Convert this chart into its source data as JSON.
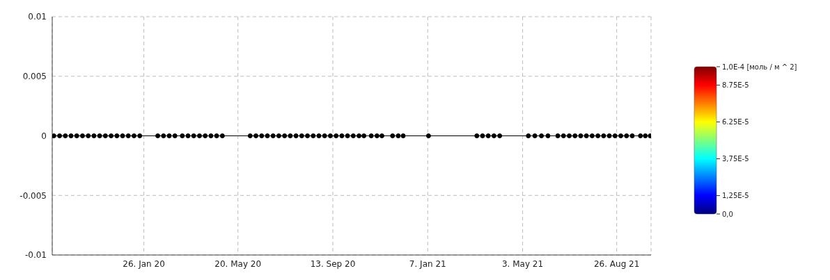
{
  "chart_data": {
    "type": "line",
    "marker": "circle",
    "line_style": "solid",
    "grid": true,
    "xlim": [
      "2019-10-06",
      "2021-10-07"
    ],
    "xticks": [
      {
        "value": "2020-01-26",
        "label": "26. Jan 20"
      },
      {
        "value": "2020-05-20",
        "label": "20. May 20"
      },
      {
        "value": "2020-09-13",
        "label": "13. Sep 20"
      },
      {
        "value": "2021-01-07",
        "label": "7. Jan 21"
      },
      {
        "value": "2021-05-03",
        "label": "3. May 21"
      },
      {
        "value": "2021-08-26",
        "label": "26. Aug 21"
      }
    ],
    "ylim": [
      -0.01,
      0.01
    ],
    "yticks": [
      -0.01,
      -0.005,
      0,
      0.005,
      0.01
    ],
    "clabel": "[моль / м ^ 2]",
    "clim": [
      0,
      0.0001
    ],
    "cticks": [
      {
        "value": 0,
        "label": "0,0"
      },
      {
        "value": 1.25e-05,
        "label": "1,25E-5"
      },
      {
        "value": 3.75e-05,
        "label": "3,75E-5"
      },
      {
        "value": 6.25e-05,
        "label": "6.25E-5"
      },
      {
        "value": 8.75e-05,
        "label": "8.75E-5"
      },
      {
        "value": 0.0001,
        "label": "1,0E-4"
      }
    ],
    "series": [
      {
        "color": "#000000",
        "x": [
          "2019-10-08",
          "2019-10-15",
          "2019-10-22",
          "2019-10-29",
          "2019-11-05",
          "2019-11-12",
          "2019-11-19",
          "2019-11-26",
          "2019-12-03",
          "2019-12-10",
          "2019-12-17",
          "2019-12-24",
          "2019-12-31",
          "2020-01-07",
          "2020-01-14",
          "2020-01-21",
          "2020-02-12",
          "2020-02-19",
          "2020-02-26",
          "2020-03-04",
          "2020-03-13",
          "2020-03-20",
          "2020-03-27",
          "2020-04-03",
          "2020-04-10",
          "2020-04-17",
          "2020-04-24",
          "2020-05-01",
          "2020-06-04",
          "2020-06-11",
          "2020-06-18",
          "2020-06-25",
          "2020-07-02",
          "2020-07-09",
          "2020-07-16",
          "2020-07-23",
          "2020-07-30",
          "2020-08-06",
          "2020-08-13",
          "2020-08-20",
          "2020-08-27",
          "2020-09-03",
          "2020-09-10",
          "2020-09-17",
          "2020-09-24",
          "2020-10-01",
          "2020-10-08",
          "2020-10-15",
          "2020-10-21",
          "2020-10-30",
          "2020-11-06",
          "2020-11-12",
          "2020-11-25",
          "2020-12-02",
          "2020-12-08",
          "2021-01-08",
          "2021-03-08",
          "2021-03-15",
          "2021-03-22",
          "2021-03-29",
          "2021-04-05",
          "2021-05-10",
          "2021-05-18",
          "2021-05-26",
          "2021-06-03",
          "2021-06-15",
          "2021-06-22",
          "2021-06-29",
          "2021-07-06",
          "2021-07-13",
          "2021-07-20",
          "2021-07-27",
          "2021-08-03",
          "2021-08-10",
          "2021-08-17",
          "2021-08-24",
          "2021-08-31",
          "2021-09-07",
          "2021-09-14",
          "2021-09-24",
          "2021-09-30",
          "2021-10-06"
        ],
        "values": [
          0,
          0,
          0,
          0,
          0,
          0,
          0,
          0,
          0,
          0,
          0,
          0,
          0,
          0,
          0,
          0,
          0,
          0,
          0,
          0,
          0,
          0,
          0,
          0,
          0,
          0,
          0,
          0,
          0,
          0,
          0,
          0,
          0,
          0,
          0,
          0,
          0,
          0,
          0,
          0,
          0,
          0,
          0,
          0,
          0,
          0,
          0,
          0,
          0,
          0,
          0,
          0,
          0,
          0,
          0,
          0,
          0,
          0,
          0,
          0,
          0,
          0,
          0,
          0,
          0,
          0,
          0,
          0,
          0,
          0,
          0,
          0,
          0,
          0,
          0,
          0,
          0,
          0,
          0,
          0,
          0,
          0
        ]
      }
    ]
  }
}
